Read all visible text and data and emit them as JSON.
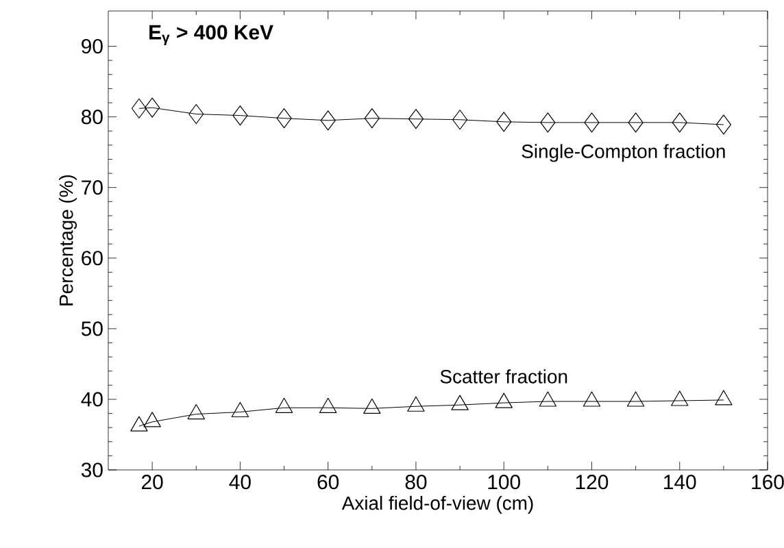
{
  "chart_data": {
    "type": "line",
    "xlabel": "Axial field-of-view (cm)",
    "ylabel": "Percentage (%)",
    "annotations": [
      "E$_{γ}$ > 400 KeV"
    ],
    "xlim": [
      10,
      160
    ],
    "ylim": [
      30,
      95
    ],
    "xticks": [
      20,
      40,
      60,
      80,
      100,
      120,
      140,
      160
    ],
    "yticks": [
      30,
      40,
      50,
      60,
      70,
      80,
      90
    ],
    "grid": false,
    "series": [
      {
        "name": "Single-Compton fraction",
        "color": "#000000",
        "marker": "diamond",
        "x": [
          17,
          20,
          30,
          40,
          50,
          60,
          70,
          80,
          90,
          100,
          110,
          120,
          130,
          140,
          150
        ],
        "values": [
          81.2,
          81.3,
          80.4,
          80.2,
          79.8,
          79.5,
          79.8,
          79.7,
          79.6,
          79.3,
          79.2,
          79.2,
          79.2,
          79.2,
          78.9
        ]
      },
      {
        "name": "Scatter fraction",
        "color": "#000000",
        "marker": "triangle",
        "x": [
          17,
          20,
          30,
          40,
          50,
          60,
          70,
          80,
          90,
          100,
          110,
          120,
          130,
          140,
          150
        ],
        "values": [
          36.2,
          36.8,
          37.9,
          38.2,
          38.8,
          38.8,
          38.7,
          39.0,
          39.2,
          39.5,
          39.7,
          39.7,
          39.7,
          39.8,
          39.9
        ]
      }
    ]
  }
}
